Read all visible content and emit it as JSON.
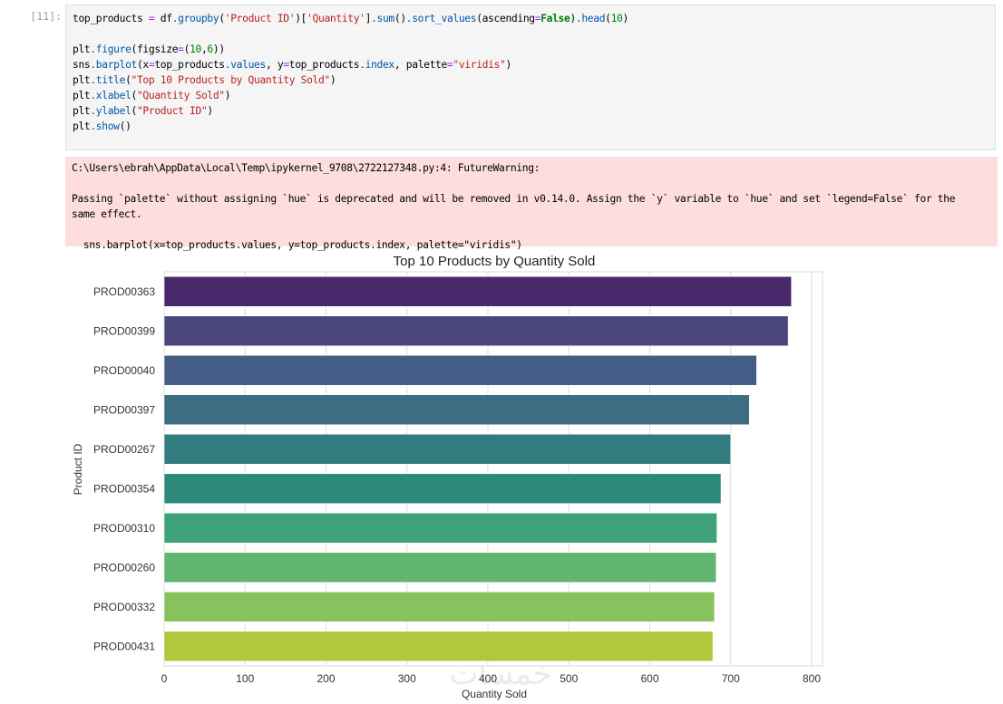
{
  "cell": {
    "prompt": "[11]:",
    "code_lines": [
      [
        [
          "top_products ",
          ""
        ],
        [
          "=",
          "t-op"
        ],
        [
          " df",
          ""
        ],
        [
          ".groupby",
          "t-attr"
        ],
        [
          "(",
          ""
        ],
        [
          "'Product ID'",
          "t-str"
        ],
        [
          ")[",
          ""
        ],
        [
          "'Quantity'",
          "t-str"
        ],
        [
          "]",
          ""
        ],
        [
          ".sum",
          "t-attr"
        ],
        [
          "()",
          ""
        ],
        [
          ".sort_values",
          "t-attr"
        ],
        [
          "(ascending",
          ""
        ],
        [
          "=",
          "t-op"
        ],
        [
          "False",
          "t-kw"
        ],
        [
          ")",
          ""
        ],
        [
          ".head",
          "t-attr"
        ],
        [
          "(",
          ""
        ],
        [
          "10",
          "t-num"
        ],
        [
          ")",
          ""
        ]
      ],
      [],
      [
        [
          "plt",
          ""
        ],
        [
          ".figure",
          "t-attr"
        ],
        [
          "(figsize",
          ""
        ],
        [
          "=",
          "t-op"
        ],
        [
          "(",
          ""
        ],
        [
          "10",
          "t-num"
        ],
        [
          ",",
          ""
        ],
        [
          "6",
          "t-num"
        ],
        [
          "))",
          ""
        ]
      ],
      [
        [
          "sns",
          ""
        ],
        [
          ".barplot",
          "t-attr"
        ],
        [
          "(x",
          ""
        ],
        [
          "=",
          "t-op"
        ],
        [
          "top_products",
          ""
        ],
        [
          ".values",
          "t-attr"
        ],
        [
          ", y",
          ""
        ],
        [
          "=",
          "t-op"
        ],
        [
          "top_products",
          ""
        ],
        [
          ".index",
          "t-attr"
        ],
        [
          ", palette",
          ""
        ],
        [
          "=",
          "t-op"
        ],
        [
          "\"viridis\"",
          "t-str"
        ],
        [
          ")",
          ""
        ]
      ],
      [
        [
          "plt",
          ""
        ],
        [
          ".title",
          "t-attr"
        ],
        [
          "(",
          ""
        ],
        [
          "\"Top 10 Products by Quantity Sold\"",
          "t-str"
        ],
        [
          ")",
          ""
        ]
      ],
      [
        [
          "plt",
          ""
        ],
        [
          ".xlabel",
          "t-attr"
        ],
        [
          "(",
          ""
        ],
        [
          "\"Quantity Sold\"",
          "t-str"
        ],
        [
          ")",
          ""
        ]
      ],
      [
        [
          "plt",
          ""
        ],
        [
          ".ylabel",
          "t-attr"
        ],
        [
          "(",
          ""
        ],
        [
          "\"Product ID\"",
          "t-str"
        ],
        [
          ")",
          ""
        ]
      ],
      [
        [
          "plt",
          ""
        ],
        [
          ".show",
          "t-attr"
        ],
        [
          "()",
          ""
        ]
      ]
    ]
  },
  "warning": {
    "path_line": "C:\\Users\\ebrah\\AppData\\Local\\Temp\\ipykernel_9708\\2722127348.py:4: FutureWarning:",
    "message_line1": "Passing `palette` without assigning `hue` is deprecated and will be removed in v0.14.0. Assign the `y` variable to `hue` and set `legend=False` for the",
    "message_line2": "same effect.",
    "source_line": "  sns.barplot(x=top_products.values, y=top_products.index, palette=\"viridis\")"
  },
  "watermark": "خمسات",
  "chart_data": {
    "type": "bar",
    "orientation": "horizontal",
    "title": "Top 10 Products by Quantity Sold",
    "xlabel": "Quantity Sold",
    "ylabel": "Product ID",
    "categories": [
      "PROD00363",
      "PROD00399",
      "PROD00040",
      "PROD00397",
      "PROD00267",
      "PROD00354",
      "PROD00310",
      "PROD00260",
      "PROD00332",
      "PROD00431"
    ],
    "values": [
      775,
      771,
      732,
      723,
      700,
      688,
      683,
      682,
      680,
      678
    ],
    "colors": [
      "#482a6c",
      "#4b477b",
      "#445d86",
      "#3b6e80",
      "#317c7e",
      "#2f8a7e",
      "#3ea37a",
      "#62b56f",
      "#88c25d",
      "#b0c93c"
    ],
    "xlim": [
      0,
      813
    ],
    "xticks": [
      0,
      100,
      200,
      300,
      400,
      500,
      600,
      700,
      800
    ],
    "grid": true
  }
}
